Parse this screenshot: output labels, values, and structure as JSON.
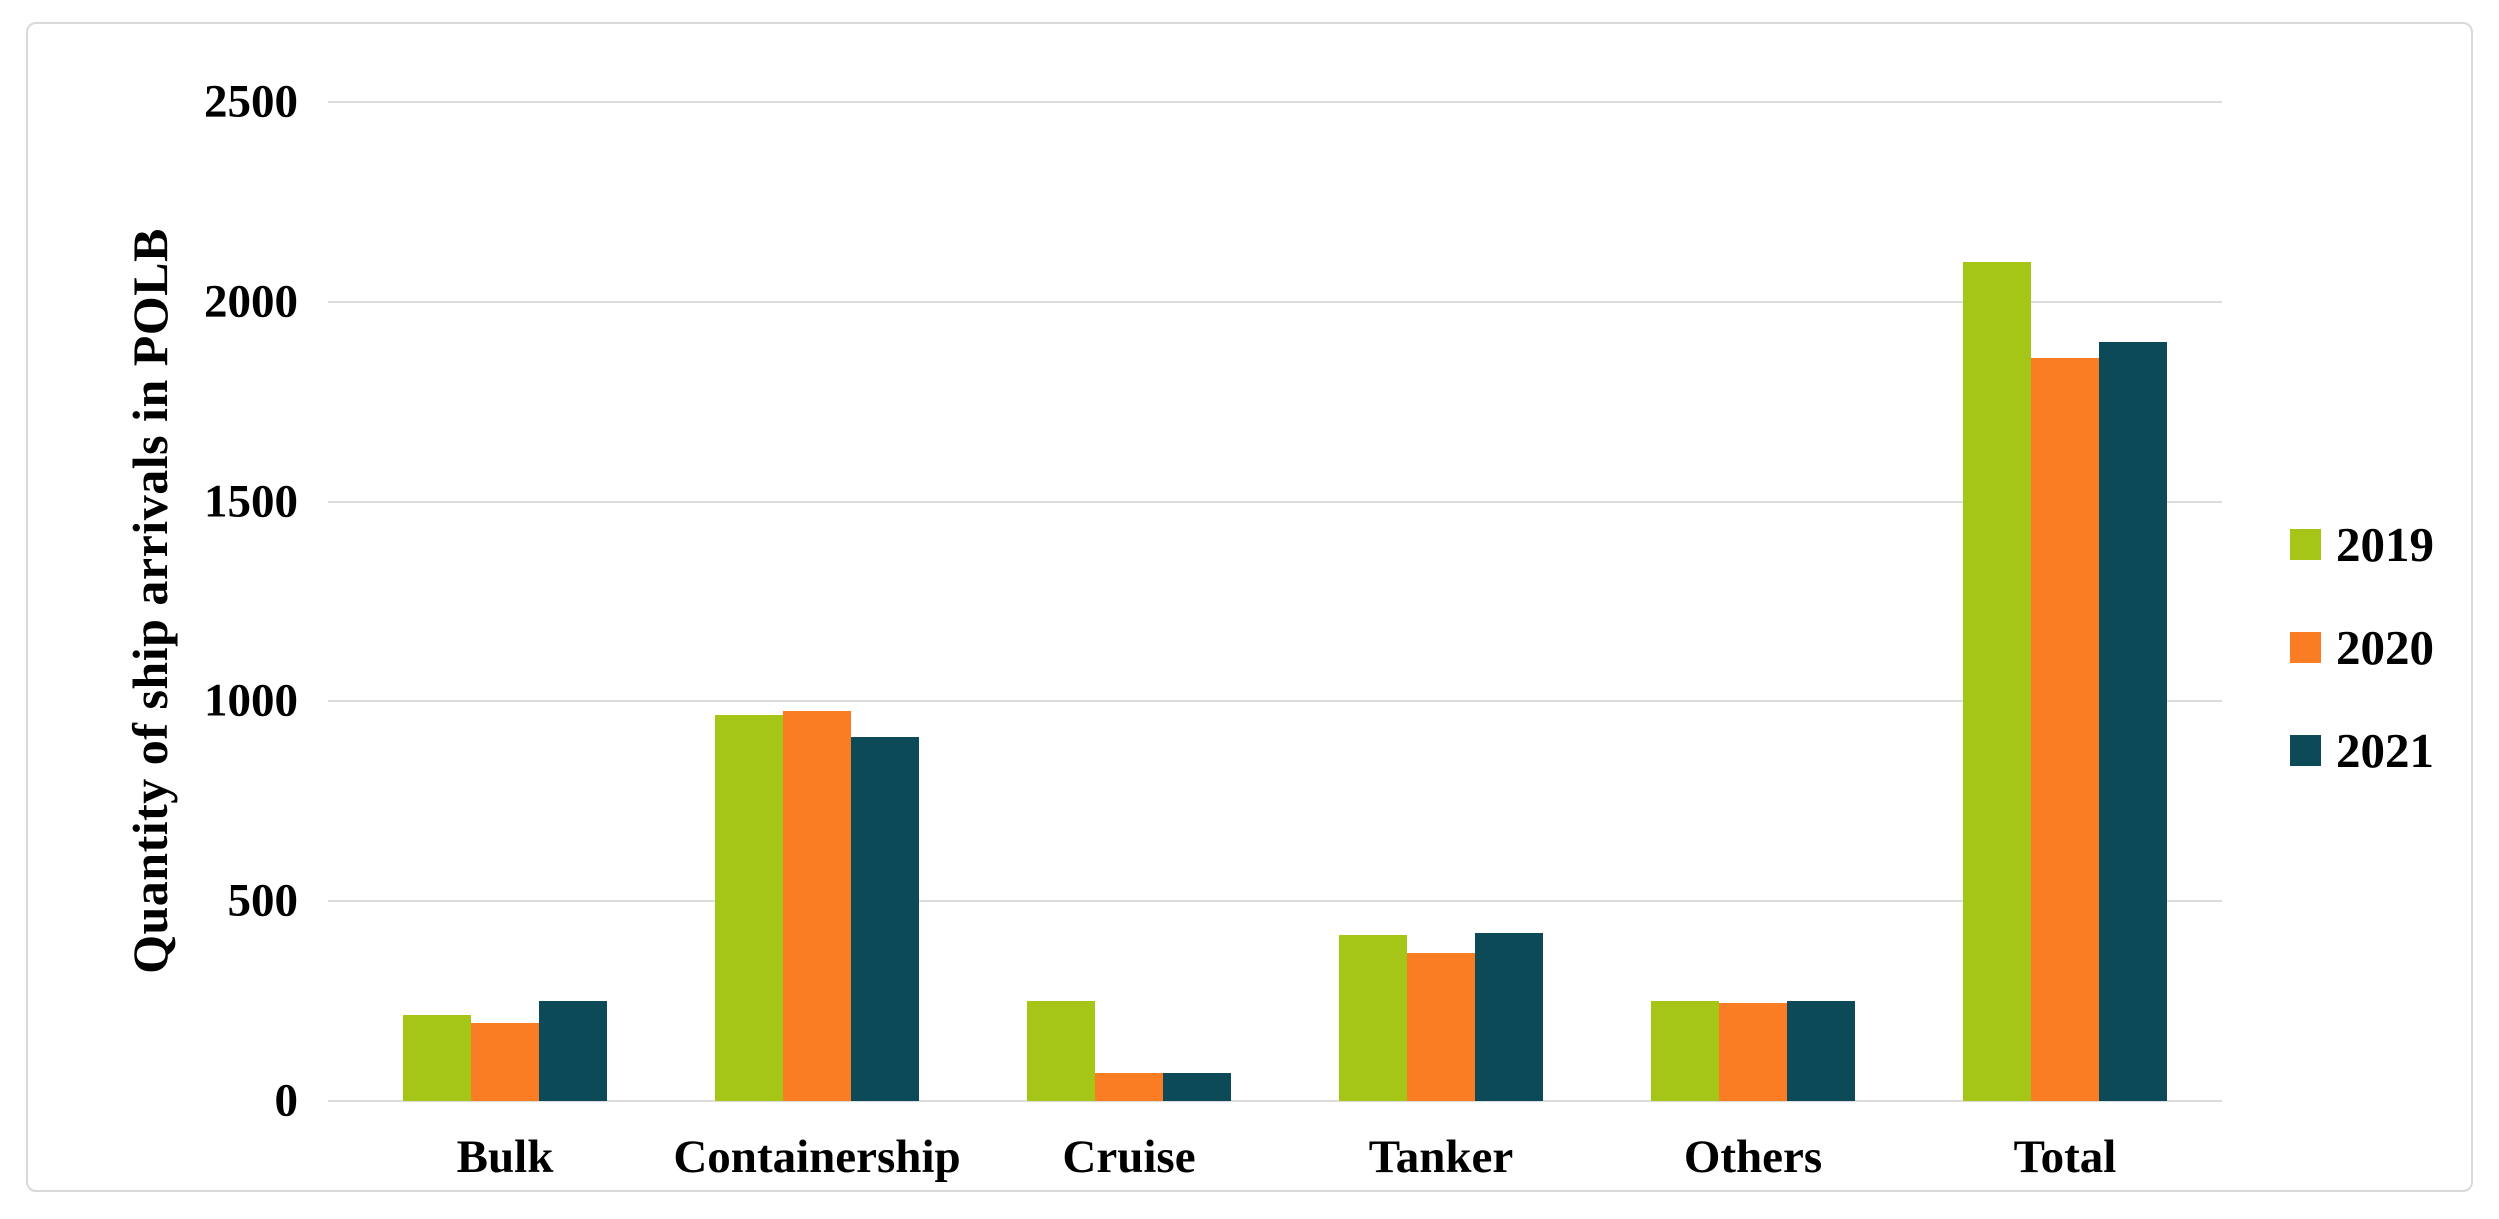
{
  "figure": {
    "background": "#FFFFFF",
    "border_color": "#D9D9D9"
  },
  "chart_data": {
    "type": "bar",
    "title": "",
    "xlabel": "",
    "ylabel": "Quantity of ship arrivals in POLB",
    "categories": [
      "Bulk",
      "Containership",
      "Cruise",
      "Tanker",
      "Others",
      "Total"
    ],
    "series": [
      {
        "name": "2019",
        "color": "#A5C616",
        "values": [
          215,
          965,
          250,
          415,
          250,
          2100
        ]
      },
      {
        "name": "2020",
        "color": "#FB7D23",
        "values": [
          195,
          975,
          70,
          370,
          245,
          1860
        ]
      },
      {
        "name": "2021",
        "color": "#0B4A56",
        "values": [
          250,
          910,
          70,
          420,
          250,
          1900
        ]
      }
    ],
    "yticks": [
      0,
      500,
      1000,
      1500,
      2000,
      2500
    ],
    "ylim": [
      0,
      2500
    ],
    "grid": "horizontal",
    "gridline_color": "#DCDCDC",
    "legend_position": "right"
  }
}
